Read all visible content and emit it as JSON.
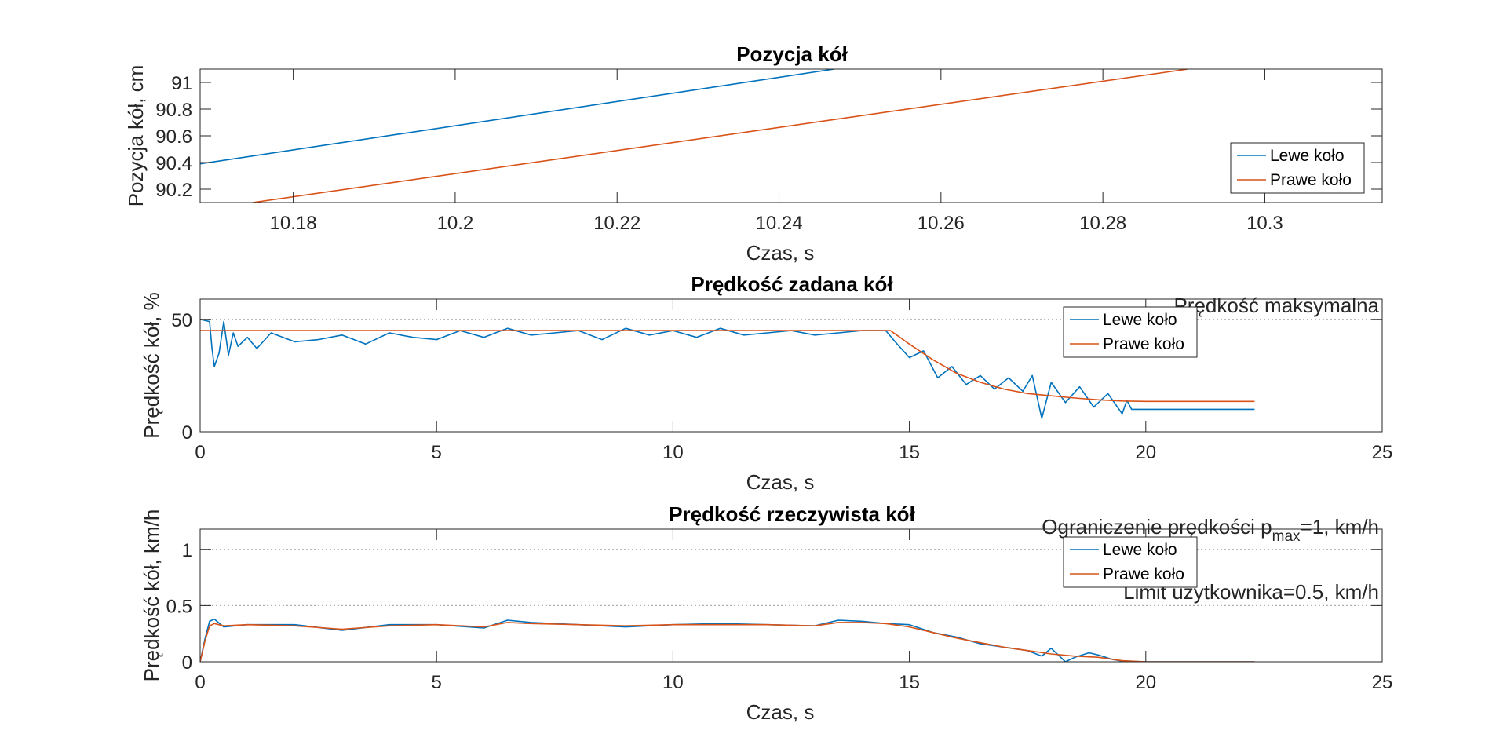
{
  "window": {
    "background": "#ffffff"
  },
  "colors": {
    "series1": "#0072BD",
    "series2": "#D95319",
    "axis": "#262626",
    "grid": "#b0b0b0",
    "text": "#262626"
  },
  "chart_data": [
    {
      "id": "position",
      "type": "line",
      "title": "Pozycja kół",
      "xlabel": "Czas, s",
      "ylabel": "Pozycja kół, cm",
      "xlim": [
        10.1685,
        10.3145
      ],
      "ylim": [
        90.1,
        91.1
      ],
      "xticks": [
        10.18,
        10.2,
        10.22,
        10.24,
        10.26,
        10.28,
        10.3
      ],
      "xtick_labels": [
        "10.18",
        "10.2",
        "10.22",
        "10.24",
        "10.26",
        "10.28",
        "10.3"
      ],
      "yticks": [
        90.2,
        90.4,
        90.6,
        90.8,
        91
      ],
      "ytick_labels": [
        "90.2",
        "90.4",
        "90.6",
        "90.8",
        "91"
      ],
      "legend_position": "lower-right",
      "series": [
        {
          "name": "Lewe koło",
          "x": [
            10.1685,
            10.2468
          ],
          "y": [
            90.39,
            91.1
          ]
        },
        {
          "name": "Prawe koło",
          "x": [
            10.175,
            10.2905
          ],
          "y": [
            90.1,
            91.1
          ]
        }
      ],
      "reference_lines": [],
      "annotations": []
    },
    {
      "id": "set_speed",
      "type": "line",
      "title": "Prędkość zadana kół",
      "xlabel": "Czas, s",
      "ylabel": "Prędkość kół, %",
      "xlim": [
        0,
        25
      ],
      "ylim": [
        0,
        59
      ],
      "xticks": [
        0,
        5,
        10,
        15,
        20,
        25
      ],
      "xtick_labels": [
        "0",
        "5",
        "10",
        "15",
        "20",
        "25"
      ],
      "yticks": [
        0,
        50
      ],
      "ytick_labels": [
        "0",
        "50"
      ],
      "legend_position": "top-right",
      "series": [
        {
          "name": "Lewe koło",
          "x": [
            0,
            0.2,
            0.25,
            0.3,
            0.4,
            0.5,
            0.6,
            0.7,
            0.8,
            1.0,
            1.2,
            1.5,
            2,
            2.5,
            3,
            3.5,
            4,
            4.5,
            5,
            5.5,
            6,
            6.5,
            7,
            7.5,
            8,
            8.5,
            9,
            9.5,
            10,
            10.5,
            11,
            11.5,
            12,
            12.5,
            13,
            13.5,
            14,
            14.5,
            14.7,
            15.0,
            15.3,
            15.6,
            15.9,
            16.2,
            16.5,
            16.8,
            17.1,
            17.4,
            17.6,
            17.8,
            18.0,
            18.3,
            18.6,
            18.9,
            19.2,
            19.5,
            19.6,
            19.7,
            22.3
          ],
          "y": [
            50,
            49,
            37,
            29,
            35,
            49,
            34,
            44,
            38,
            42,
            37,
            44,
            40,
            41,
            43,
            39,
            44,
            42,
            41,
            45,
            42,
            46,
            43,
            44,
            45,
            41,
            46,
            43,
            45,
            42,
            46,
            43,
            44,
            45,
            43,
            44,
            45,
            45,
            40,
            33,
            36,
            24,
            29,
            21,
            25,
            19,
            24,
            18,
            25,
            6,
            22,
            13,
            20,
            11,
            17,
            8,
            14,
            10,
            10
          ]
        },
        {
          "name": "Prawe koło",
          "x": [
            0,
            14.6,
            15.0,
            15.5,
            16.0,
            16.5,
            17.0,
            17.5,
            18.0,
            18.5,
            19.0,
            19.5,
            20.0,
            22.3
          ],
          "y": [
            45,
            45,
            39,
            32,
            26,
            22,
            19,
            17,
            16,
            15,
            14.2,
            13.7,
            13.5,
            13.5
          ]
        }
      ],
      "reference_lines": [
        {
          "y": 50,
          "label": "Prędkość maksymalna"
        }
      ],
      "annotations": []
    },
    {
      "id": "actual_speed",
      "type": "line",
      "title": "Prędkość rzeczywista kół",
      "xlabel": "Czas, s",
      "ylabel": "Prędkość kół, km/h",
      "xlim": [
        0,
        25
      ],
      "ylim": [
        0,
        1.18
      ],
      "xticks": [
        0,
        5,
        10,
        15,
        20,
        25
      ],
      "xtick_labels": [
        "0",
        "5",
        "10",
        "15",
        "20",
        "25"
      ],
      "yticks": [
        0,
        0.5,
        1
      ],
      "ytick_labels": [
        "0",
        "0.5",
        "1"
      ],
      "legend_position": "top-right",
      "series": [
        {
          "name": "Lewe koło",
          "x": [
            0,
            0.1,
            0.2,
            0.3,
            0.5,
            1,
            2,
            3,
            4,
            5,
            6,
            6.5,
            7,
            8,
            9,
            10,
            11,
            12,
            13,
            13.5,
            14,
            14.5,
            15,
            15.5,
            16,
            16.5,
            17,
            17.5,
            17.8,
            18,
            18.3,
            18.5,
            18.8,
            19,
            19.3,
            19.6,
            19.7,
            22.3
          ],
          "y": [
            0,
            0.2,
            0.36,
            0.38,
            0.31,
            0.33,
            0.33,
            0.28,
            0.33,
            0.33,
            0.3,
            0.37,
            0.35,
            0.33,
            0.31,
            0.33,
            0.34,
            0.33,
            0.32,
            0.37,
            0.36,
            0.34,
            0.33,
            0.26,
            0.22,
            0.16,
            0.13,
            0.1,
            0.05,
            0.12,
            0.0,
            0.04,
            0.08,
            0.06,
            0.02,
            0.0,
            0.0,
            0.0
          ]
        },
        {
          "name": "Prawe koło",
          "x": [
            0,
            0.1,
            0.2,
            0.3,
            0.5,
            1,
            2,
            3,
            4,
            5,
            6,
            6.5,
            7,
            8,
            9,
            10,
            11,
            12,
            13,
            13.5,
            14,
            14.5,
            15,
            15.5,
            16,
            16.5,
            17,
            17.5,
            18,
            18.5,
            19,
            19.5,
            20,
            22.3
          ],
          "y": [
            0,
            0.18,
            0.32,
            0.34,
            0.32,
            0.33,
            0.32,
            0.29,
            0.32,
            0.33,
            0.31,
            0.35,
            0.34,
            0.33,
            0.32,
            0.33,
            0.33,
            0.33,
            0.32,
            0.35,
            0.35,
            0.34,
            0.31,
            0.26,
            0.21,
            0.17,
            0.13,
            0.1,
            0.07,
            0.05,
            0.04,
            0.01,
            0.0,
            0.0
          ]
        }
      ],
      "reference_lines": [
        {
          "y": 1,
          "label": "Ograniczenie prędkości p",
          "label_sub": "max",
          "label_after": "=1, km/h"
        },
        {
          "y": 0.5,
          "label": "Limit użytkownika=0.5, km/h"
        }
      ],
      "annotations": []
    }
  ]
}
